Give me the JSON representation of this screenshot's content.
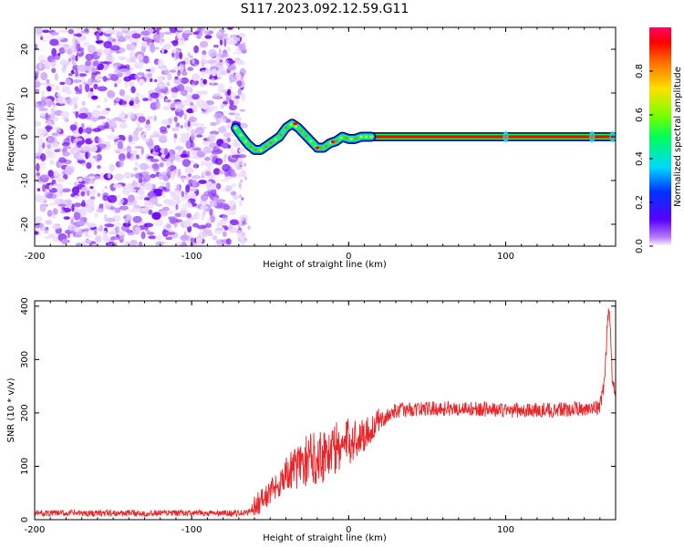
{
  "title": "S117.2023.092.12.59.G11",
  "chart_data": [
    {
      "type": "heatmap",
      "xlabel": "Height of straight line (km)",
      "ylabel": "Frequency (Hz)",
      "xlim": [
        -200,
        170
      ],
      "ylim": [
        -25,
        25
      ],
      "xticks": [
        -200,
        -100,
        0,
        100
      ],
      "yticks": [
        -20,
        -10,
        0,
        10,
        20
      ],
      "colorbar": {
        "label": "Normalized spectral amplitude",
        "range": [
          0,
          1
        ],
        "ticks": [
          "0.0",
          "0.2",
          "0.4",
          "0.6",
          "0.8"
        ]
      },
      "noise_region_x": [
        -200,
        -70
      ],
      "ridge": {
        "x": [
          -72,
          -68,
          -64,
          -60,
          -56,
          -52,
          -48,
          -44,
          -40,
          -36,
          -32,
          -28,
          -24,
          -20,
          -16,
          -12,
          -8,
          -4,
          0,
          4,
          8,
          12,
          16,
          30,
          60,
          100,
          140,
          160,
          170
        ],
        "y": [
          2.0,
          0.0,
          -1.8,
          -3.0,
          -3.0,
          -2.0,
          -1.0,
          0.0,
          2.0,
          3.0,
          2.0,
          0.5,
          -1.0,
          -2.5,
          -2.5,
          -1.5,
          -1.0,
          0.0,
          -0.5,
          -0.5,
          0.0,
          0.0,
          0.0,
          0.0,
          0.0,
          0.0,
          0.0,
          0.0,
          0.0
        ]
      },
      "ridge_end_x": 15,
      "line_band": {
        "x": [
          15,
          170
        ],
        "y": 0
      }
    },
    {
      "type": "line",
      "xlabel": "Height of straight line (km)",
      "ylabel": "SNR (10 * v/v)",
      "xlim": [
        -200,
        170
      ],
      "ylim": [
        0,
        410
      ],
      "xticks": [
        -200,
        -100,
        0,
        100
      ],
      "yticks": [
        0,
        100,
        200,
        300,
        400
      ],
      "series": [
        {
          "color": "#e8262a",
          "x": [
            -200,
            -150,
            -100,
            -65,
            -58,
            -50,
            -40,
            -30,
            -20,
            -10,
            0,
            10,
            20,
            30,
            50,
            80,
            100,
            130,
            160,
            163,
            165,
            166,
            167,
            168,
            170
          ],
          "y": [
            12,
            12,
            12,
            12,
            30,
            50,
            85,
            105,
            120,
            130,
            145,
            160,
            185,
            205,
            208,
            208,
            205,
            205,
            210,
            260,
            380,
            400,
            330,
            250,
            240
          ]
        }
      ]
    }
  ]
}
